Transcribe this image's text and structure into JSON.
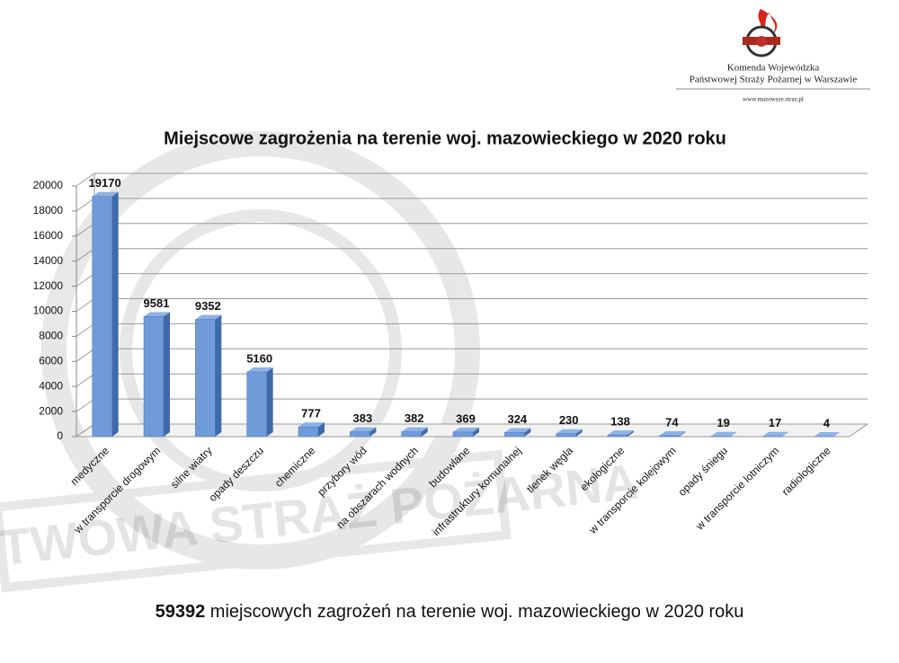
{
  "header": {
    "org_line1": "Komenda Wojewódzka",
    "org_line2": "Państwowej Straży Pożarnej w Warszawie",
    "website": "www.mazowsze.straz.pl"
  },
  "watermark": "PAŃSTWOWA STRAŻ POŻARNA",
  "chart_data": {
    "type": "bar",
    "title": "Miejscowe zagrożenia na terenie woj. mazowieckiego w 2020 roku",
    "categories": [
      "medyczne",
      "w transporcie drogowym",
      "silne wiatry",
      "opady deszczu",
      "chemiczne",
      "przybory wód",
      "na obszarach wodnych",
      "budowlane",
      "infrastruktury komunalnej",
      "tlenek węgla",
      "ekologiczne",
      "w transporcie kolejowym",
      "opady śniegu",
      "w transporcie lotniczym",
      "radiologiczne"
    ],
    "values": [
      19170,
      9581,
      9352,
      5160,
      777,
      383,
      382,
      369,
      324,
      230,
      138,
      74,
      19,
      17,
      4
    ],
    "color": "#6f9bd9",
    "ylim": [
      0,
      20000
    ],
    "yticks": [
      0,
      2000,
      4000,
      6000,
      8000,
      10000,
      12000,
      14000,
      16000,
      18000,
      20000
    ],
    "grid": true
  },
  "footer": {
    "total": 59392,
    "text": "miejscowych zagrożeń na terenie woj. mazowieckiego w 2020 roku"
  }
}
